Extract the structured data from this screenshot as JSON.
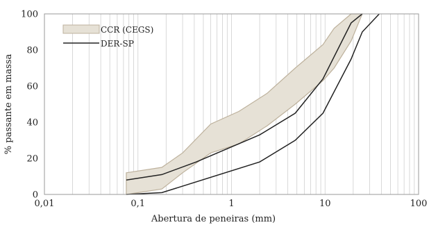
{
  "chart_data": {
    "type": "line",
    "xscale": "log",
    "xlim": [
      0.01,
      100
    ],
    "ylim": [
      0,
      100
    ],
    "xlabel": "Abertura de peneiras (mm)",
    "ylabel": "% passante em massa",
    "x_ticks": [
      {
        "value": 0.01,
        "label": "0,01"
      },
      {
        "value": 0.1,
        "label": "0,1"
      },
      {
        "value": 1,
        "label": "1"
      },
      {
        "value": 10,
        "label": "10"
      },
      {
        "value": 100,
        "label": "100"
      }
    ],
    "y_ticks": [
      0,
      20,
      40,
      60,
      80,
      100
    ],
    "grid": "vertical-log-minor",
    "legend_position": "top-left",
    "colors": {
      "band_fill": "#e6e1d6",
      "band_edge": "#bdb19c",
      "line": "#222222",
      "grid": "#cfcfcf"
    },
    "band": {
      "name": "CCR (CEGS)",
      "upper": [
        {
          "x": 0.075,
          "y": 12
        },
        {
          "x": 0.18,
          "y": 15
        },
        {
          "x": 0.3,
          "y": 23
        },
        {
          "x": 0.6,
          "y": 39
        },
        {
          "x": 1.2,
          "y": 46
        },
        {
          "x": 2.4,
          "y": 56
        },
        {
          "x": 4.8,
          "y": 70
        },
        {
          "x": 9.5,
          "y": 83
        },
        {
          "x": 12.5,
          "y": 92
        },
        {
          "x": 19,
          "y": 100
        },
        {
          "x": 25,
          "y": 100
        }
      ],
      "lower": [
        {
          "x": 0.075,
          "y": 0
        },
        {
          "x": 0.18,
          "y": 3
        },
        {
          "x": 0.3,
          "y": 12
        },
        {
          "x": 0.6,
          "y": 23
        },
        {
          "x": 1.2,
          "y": 28
        },
        {
          "x": 2.4,
          "y": 38
        },
        {
          "x": 4.8,
          "y": 50
        },
        {
          "x": 9.5,
          "y": 63
        },
        {
          "x": 12.5,
          "y": 70
        },
        {
          "x": 19,
          "y": 85
        },
        {
          "x": 25,
          "y": 100
        }
      ]
    },
    "series": [
      {
        "name": "DER-SP",
        "points": [
          {
            "x": 0.075,
            "y": 8
          },
          {
            "x": 0.18,
            "y": 11
          },
          {
            "x": 0.42,
            "y": 18
          },
          {
            "x": 2,
            "y": 33
          },
          {
            "x": 4.8,
            "y": 45
          },
          {
            "x": 9.5,
            "y": 64
          },
          {
            "x": 19,
            "y": 95
          },
          {
            "x": 25,
            "y": 100
          }
        ]
      },
      {
        "name": "",
        "points": [
          {
            "x": 0.075,
            "y": 0
          },
          {
            "x": 0.18,
            "y": 1
          },
          {
            "x": 2,
            "y": 18
          },
          {
            "x": 4.8,
            "y": 30
          },
          {
            "x": 9.5,
            "y": 45
          },
          {
            "x": 19,
            "y": 75
          },
          {
            "x": 25,
            "y": 90
          },
          {
            "x": 38,
            "y": 100
          }
        ]
      }
    ]
  }
}
